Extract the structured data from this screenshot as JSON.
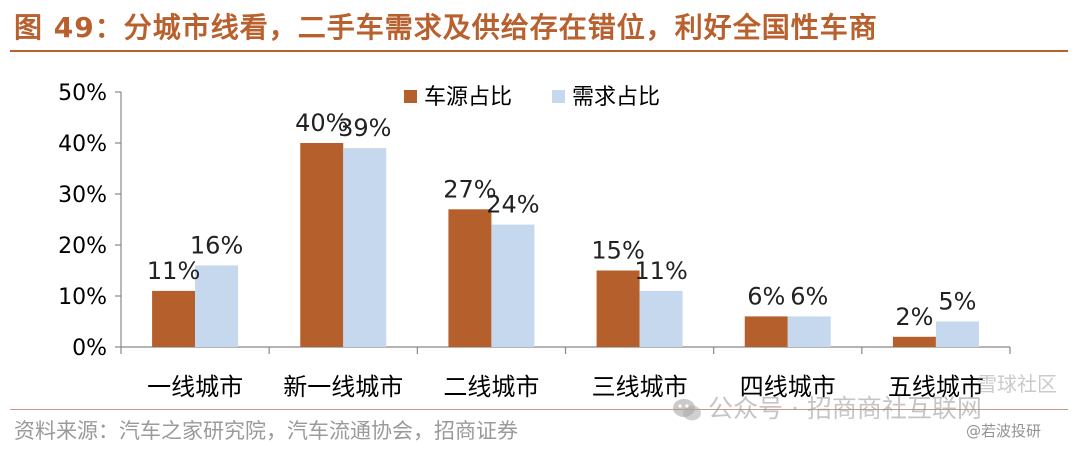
{
  "title": "图 49：分城市线看，二手车需求及供给存在错位，利好全国性车商",
  "source": "资料来源：汽车之家研究院，汽车流通协会，招商证券",
  "watermark": {
    "main": "公众号 · 招商商社互联网",
    "corner": "雪球社区",
    "handle": "@若波投研",
    "icon": "wechat-icon"
  },
  "colors": {
    "title": "#b8602e",
    "supply": "#b5602c",
    "demand": "#c5d8ed"
  },
  "chart_data": {
    "type": "bar",
    "categories": [
      "一线城市",
      "新一线城市",
      "二线城市",
      "三线城市",
      "四线城市",
      "五线城市"
    ],
    "series": [
      {
        "name": "车源占比",
        "values": [
          11,
          40,
          27,
          15,
          6,
          2
        ],
        "labels": [
          "11%",
          "40%",
          "27%",
          "15%",
          "6%",
          "2%"
        ]
      },
      {
        "name": "需求占比",
        "values": [
          16,
          39,
          24,
          11,
          6,
          5
        ],
        "labels": [
          "16%",
          "39%",
          "24%",
          "11%",
          "6%",
          "5%"
        ]
      }
    ],
    "yticks": [
      "0%",
      "10%",
      "20%",
      "30%",
      "40%",
      "50%"
    ],
    "ylim": [
      0,
      50
    ],
    "legend": "top"
  }
}
